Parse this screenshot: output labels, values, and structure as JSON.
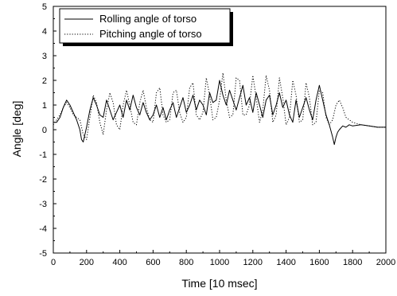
{
  "chart_data": {
    "type": "line",
    "xlabel": "Time [10 msec]",
    "ylabel": "Angle [deg]",
    "xlim": [
      0,
      2000
    ],
    "ylim": [
      -5,
      5
    ],
    "xticks": [
      0,
      200,
      400,
      600,
      800,
      1000,
      1200,
      1400,
      1600,
      1800,
      2000
    ],
    "yticks": [
      -5,
      -4,
      -3,
      -2,
      -1,
      0,
      1,
      2,
      3,
      4,
      5
    ],
    "grid": false,
    "legend_position": "top-left",
    "series": [
      {
        "name": "Rolling angle of torso",
        "style": "solid",
        "color": "#000000",
        "x": [
          0,
          20,
          40,
          60,
          80,
          100,
          120,
          140,
          160,
          170,
          180,
          200,
          220,
          240,
          260,
          280,
          300,
          320,
          340,
          360,
          380,
          400,
          420,
          440,
          460,
          480,
          500,
          520,
          540,
          560,
          580,
          600,
          620,
          640,
          660,
          680,
          700,
          720,
          740,
          760,
          780,
          800,
          820,
          840,
          860,
          880,
          900,
          920,
          940,
          960,
          980,
          1000,
          1020,
          1040,
          1060,
          1080,
          1100,
          1120,
          1140,
          1160,
          1180,
          1200,
          1220,
          1240,
          1260,
          1280,
          1300,
          1320,
          1340,
          1360,
          1380,
          1400,
          1420,
          1440,
          1460,
          1480,
          1500,
          1520,
          1540,
          1560,
          1580,
          1600,
          1620,
          1640,
          1660,
          1680,
          1690,
          1700,
          1710,
          1720,
          1740,
          1760,
          1780,
          1800,
          1850,
          1900,
          1950,
          2000
        ],
        "y": [
          0.3,
          0.3,
          0.5,
          0.9,
          1.2,
          1.0,
          0.7,
          0.4,
          0.0,
          -0.4,
          -0.5,
          0.1,
          0.8,
          1.3,
          1.0,
          0.6,
          0.5,
          1.2,
          0.8,
          0.4,
          0.7,
          1.0,
          0.5,
          1.2,
          0.8,
          1.4,
          0.9,
          0.6,
          1.1,
          0.7,
          0.4,
          0.6,
          1.0,
          0.5,
          0.9,
          0.4,
          0.8,
          1.1,
          0.5,
          0.9,
          1.3,
          0.7,
          1.0,
          1.4,
          0.8,
          1.2,
          1.0,
          0.6,
          1.5,
          1.1,
          1.2,
          2.0,
          1.4,
          1.0,
          1.6,
          1.2,
          0.8,
          1.3,
          1.8,
          1.0,
          1.3,
          0.7,
          1.5,
          1.0,
          0.5,
          1.2,
          1.4,
          0.6,
          1.0,
          1.5,
          0.9,
          1.2,
          0.6,
          0.3,
          1.2,
          0.5,
          0.9,
          1.3,
          0.8,
          0.4,
          1.2,
          1.8,
          1.2,
          0.6,
          0.2,
          -0.3,
          -0.6,
          -0.3,
          -0.1,
          0.0,
          0.15,
          0.1,
          0.2,
          0.15,
          0.2,
          0.15,
          0.1,
          0.1
        ]
      },
      {
        "name": "Pitching angle of torso",
        "style": "dotted",
        "color": "#000000",
        "x": [
          0,
          20,
          40,
          60,
          80,
          100,
          120,
          140,
          160,
          180,
          200,
          220,
          240,
          260,
          280,
          300,
          320,
          340,
          360,
          380,
          400,
          420,
          440,
          460,
          480,
          500,
          520,
          540,
          560,
          580,
          600,
          620,
          640,
          660,
          680,
          700,
          720,
          740,
          760,
          780,
          800,
          820,
          840,
          860,
          880,
          900,
          920,
          940,
          960,
          980,
          1000,
          1020,
          1040,
          1060,
          1080,
          1100,
          1120,
          1140,
          1160,
          1180,
          1200,
          1220,
          1240,
          1260,
          1280,
          1300,
          1320,
          1340,
          1360,
          1380,
          1400,
          1420,
          1440,
          1460,
          1480,
          1500,
          1520,
          1540,
          1560,
          1580,
          1600,
          1620,
          1640,
          1660,
          1680,
          1700,
          1720,
          1740,
          1760,
          1800,
          1850,
          1900,
          1950,
          2000
        ],
        "y": [
          0.2,
          0.4,
          0.6,
          0.9,
          1.1,
          0.9,
          0.6,
          0.5,
          0.4,
          -0.2,
          -0.4,
          0.5,
          1.4,
          1.1,
          0.3,
          -0.2,
          0.8,
          1.5,
          1.1,
          0.2,
          0.0,
          1.0,
          1.6,
          1.0,
          0.3,
          0.2,
          1.1,
          1.6,
          0.9,
          0.4,
          0.3,
          1.5,
          1.7,
          0.6,
          0.3,
          0.4,
          1.5,
          1.6,
          0.7,
          0.3,
          0.5,
          1.7,
          1.9,
          0.6,
          0.4,
          0.7,
          2.1,
          1.4,
          0.4,
          0.5,
          1.2,
          2.3,
          1.2,
          0.5,
          0.6,
          2.1,
          2.0,
          0.6,
          0.6,
          1.0,
          2.2,
          1.3,
          0.3,
          0.8,
          2.2,
          1.6,
          0.3,
          0.6,
          2.1,
          1.3,
          0.2,
          0.5,
          2.0,
          1.4,
          0.3,
          0.4,
          1.9,
          1.3,
          0.2,
          0.3,
          1.6,
          1.5,
          0.5,
          0.2,
          0.4,
          1.0,
          1.2,
          0.9,
          0.5,
          0.3,
          0.2,
          0.15,
          0.1,
          0.1
        ]
      }
    ]
  }
}
